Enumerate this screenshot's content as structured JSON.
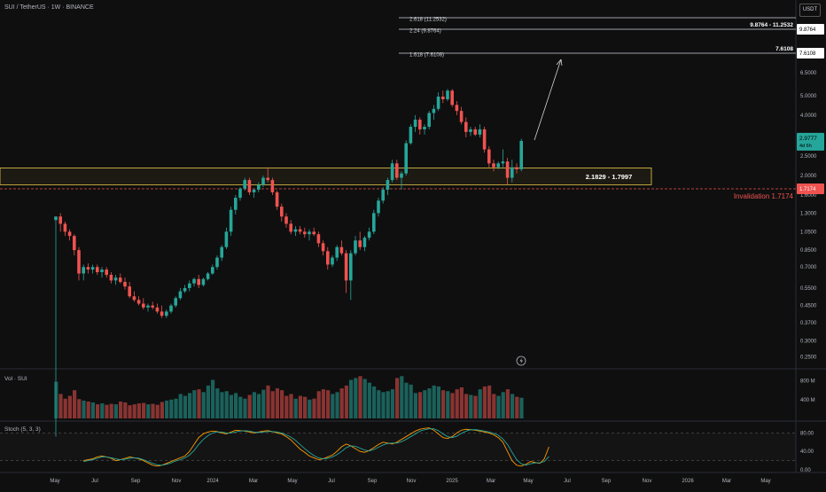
{
  "header": {
    "symbol": "SUI / TetherUS · 1W · BINANCE",
    "currency": "USDT"
  },
  "colors": {
    "up": "#26a69a",
    "down": "#ef5350",
    "support_box": "#e6c84a",
    "invalidation": "#ef5350",
    "background": "#0f0f0f",
    "stoch_k": "#ff9800",
    "stoch_d": "#26a69a"
  },
  "icons": {
    "replay": "lightning-bolt-icon"
  },
  "chart_data": [
    {
      "type": "candlestick",
      "scale": "log",
      "y_ticks": [
        0.25,
        0.3,
        0.37,
        0.45,
        0.55,
        0.7,
        0.85,
        1.05,
        1.3,
        1.6,
        2.0,
        2.5,
        3.0,
        4.0,
        5.0,
        6.5,
        8.0
      ],
      "y_tick_labels": [
        "0.2500",
        "0.3000",
        "0.3700",
        "0.4500",
        "0.5500",
        "0.7000",
        "0.8500",
        "1.0500",
        "1.3000",
        "1.6000",
        "2.0000",
        "2.5000",
        "3.0000",
        "4.0000",
        "5.0000",
        "6.5000",
        "8.0000"
      ],
      "x_labels": [
        "May",
        "Jul",
        "Sep",
        "Nov",
        "2024",
        "Mar",
        "May",
        "Jul",
        "Sep",
        "Nov",
        "2025",
        "Mar",
        "May",
        "Jul",
        "Sep",
        "Nov",
        "2026",
        "Mar",
        "May"
      ],
      "current_price": "2.9777",
      "countdown": "4d 6h",
      "fib_levels": [
        {
          "label": "2.618 (11.2532)",
          "value": 11.2532
        },
        {
          "label": "2.24 (9.8764)",
          "value": 9.8764
        },
        {
          "label": "1.618 (7.6108)",
          "value": 7.6108
        }
      ],
      "fib_range_label": "9.8764 - 11.2532",
      "target_label": "7.6108",
      "target_axis_label": "7.6108",
      "range_axis_label": "9.8764",
      "support_zone": {
        "label": "2.1829 - 1.7997",
        "top": 2.1829,
        "bottom": 1.7997
      },
      "invalidation": {
        "label": "Invalidation 1.7174",
        "value": 1.7174,
        "axis_label": "1.7174"
      },
      "candles": [
        [
          1.2,
          1.25,
          0.1,
          1.25
        ],
        [
          1.25,
          1.3,
          1.05,
          1.15
        ],
        [
          1.15,
          1.18,
          1.0,
          1.05
        ],
        [
          1.05,
          1.08,
          0.95,
          1.0
        ],
        [
          1.0,
          1.02,
          0.8,
          0.85
        ],
        [
          0.85,
          0.88,
          0.6,
          0.65
        ],
        [
          0.65,
          0.72,
          0.6,
          0.7
        ],
        [
          0.7,
          0.73,
          0.65,
          0.68
        ],
        [
          0.68,
          0.72,
          0.65,
          0.7
        ],
        [
          0.7,
          0.72,
          0.64,
          0.66
        ],
        [
          0.66,
          0.7,
          0.62,
          0.68
        ],
        [
          0.68,
          0.7,
          0.62,
          0.64
        ],
        [
          0.64,
          0.66,
          0.58,
          0.6
        ],
        [
          0.6,
          0.64,
          0.57,
          0.62
        ],
        [
          0.62,
          0.65,
          0.58,
          0.59
        ],
        [
          0.59,
          0.62,
          0.54,
          0.56
        ],
        [
          0.56,
          0.59,
          0.49,
          0.5
        ],
        [
          0.5,
          0.53,
          0.47,
          0.48
        ],
        [
          0.48,
          0.5,
          0.45,
          0.46
        ],
        [
          0.46,
          0.49,
          0.43,
          0.44
        ],
        [
          0.44,
          0.46,
          0.42,
          0.45
        ],
        [
          0.45,
          0.47,
          0.43,
          0.44
        ],
        [
          0.44,
          0.46,
          0.41,
          0.42
        ],
        [
          0.42,
          0.45,
          0.39,
          0.4
        ],
        [
          0.4,
          0.43,
          0.39,
          0.42
        ],
        [
          0.42,
          0.46,
          0.41,
          0.45
        ],
        [
          0.45,
          0.5,
          0.44,
          0.49
        ],
        [
          0.49,
          0.55,
          0.48,
          0.53
        ],
        [
          0.53,
          0.57,
          0.52,
          0.55
        ],
        [
          0.55,
          0.6,
          0.53,
          0.58
        ],
        [
          0.58,
          0.62,
          0.56,
          0.61
        ],
        [
          0.61,
          0.64,
          0.55,
          0.57
        ],
        [
          0.57,
          0.62,
          0.56,
          0.61
        ],
        [
          0.61,
          0.66,
          0.6,
          0.65
        ],
        [
          0.65,
          0.72,
          0.64,
          0.7
        ],
        [
          0.7,
          0.8,
          0.68,
          0.78
        ],
        [
          0.78,
          0.9,
          0.75,
          0.88
        ],
        [
          0.88,
          1.1,
          0.86,
          1.05
        ],
        [
          1.05,
          1.4,
          1.0,
          1.35
        ],
        [
          1.35,
          1.6,
          1.28,
          1.55
        ],
        [
          1.55,
          1.75,
          1.5,
          1.72
        ],
        [
          1.72,
          1.95,
          1.68,
          1.9
        ],
        [
          1.9,
          1.95,
          1.6,
          1.65
        ],
        [
          1.65,
          1.72,
          1.55,
          1.7
        ],
        [
          1.7,
          1.85,
          1.65,
          1.8
        ],
        [
          1.8,
          2.0,
          1.75,
          1.95
        ],
        [
          1.95,
          2.2,
          1.85,
          1.9
        ],
        [
          1.9,
          1.95,
          1.6,
          1.65
        ],
        [
          1.65,
          1.68,
          1.35,
          1.4
        ],
        [
          1.4,
          1.45,
          1.18,
          1.25
        ],
        [
          1.25,
          1.3,
          1.1,
          1.15
        ],
        [
          1.15,
          1.2,
          1.02,
          1.05
        ],
        [
          1.05,
          1.12,
          1.0,
          1.08
        ],
        [
          1.08,
          1.12,
          1.02,
          1.05
        ],
        [
          1.05,
          1.1,
          0.98,
          1.02
        ],
        [
          1.02,
          1.08,
          0.95,
          1.05
        ],
        [
          1.05,
          1.1,
          1.0,
          1.02
        ],
        [
          1.02,
          1.05,
          0.88,
          0.92
        ],
        [
          0.92,
          0.95,
          0.8,
          0.84
        ],
        [
          0.84,
          0.88,
          0.68,
          0.72
        ],
        [
          0.72,
          0.8,
          0.7,
          0.78
        ],
        [
          0.78,
          0.9,
          0.75,
          0.88
        ],
        [
          0.88,
          0.95,
          0.8,
          0.82
        ],
        [
          0.82,
          0.85,
          0.52,
          0.6
        ],
        [
          0.6,
          0.85,
          0.48,
          0.82
        ],
        [
          0.82,
          1.0,
          0.8,
          0.95
        ],
        [
          0.95,
          1.05,
          0.85,
          0.88
        ],
        [
          0.88,
          1.0,
          0.84,
          0.98
        ],
        [
          0.98,
          1.1,
          0.95,
          1.05
        ],
        [
          1.05,
          1.35,
          1.02,
          1.3
        ],
        [
          1.3,
          1.55,
          1.25,
          1.5
        ],
        [
          1.5,
          1.75,
          1.45,
          1.7
        ],
        [
          1.7,
          1.95,
          1.6,
          1.9
        ],
        [
          1.9,
          2.4,
          1.85,
          2.3
        ],
        [
          2.3,
          2.4,
          1.9,
          1.95
        ],
        [
          1.95,
          2.1,
          1.7,
          2.05
        ],
        [
          2.05,
          3.0,
          2.0,
          2.9
        ],
        [
          2.9,
          3.6,
          2.85,
          3.5
        ],
        [
          3.5,
          4.0,
          3.3,
          3.8
        ],
        [
          3.8,
          3.9,
          3.2,
          3.4
        ],
        [
          3.4,
          3.6,
          3.2,
          3.5
        ],
        [
          3.5,
          4.2,
          3.4,
          4.1
        ],
        [
          4.1,
          4.5,
          3.8,
          4.3
        ],
        [
          4.3,
          5.2,
          4.2,
          4.95
        ],
        [
          4.95,
          5.3,
          4.6,
          4.8
        ],
        [
          4.8,
          5.4,
          4.7,
          5.3
        ],
        [
          5.3,
          5.4,
          4.4,
          4.5
        ],
        [
          4.5,
          4.7,
          4.0,
          4.2
        ],
        [
          4.2,
          4.4,
          3.6,
          3.7
        ],
        [
          3.7,
          3.9,
          3.1,
          3.3
        ],
        [
          3.3,
          3.5,
          3.15,
          3.4
        ],
        [
          3.4,
          3.5,
          3.15,
          3.2
        ],
        [
          3.2,
          3.6,
          3.1,
          3.4
        ],
        [
          3.4,
          3.5,
          2.6,
          2.7
        ],
        [
          2.7,
          2.8,
          2.2,
          2.3
        ],
        [
          2.3,
          2.4,
          2.1,
          2.2
        ],
        [
          2.2,
          2.35,
          2.15,
          2.3
        ],
        [
          2.3,
          2.7,
          2.2,
          2.35
        ],
        [
          2.35,
          2.45,
          1.8,
          1.95
        ],
        [
          1.95,
          2.4,
          1.85,
          2.2
        ],
        [
          2.2,
          2.3,
          2.05,
          2.15
        ],
        [
          2.15,
          3.05,
          2.1,
          2.98
        ]
      ]
    },
    {
      "type": "bar",
      "label": "Vol · SUI",
      "y_tick_labels": [
        "800 M",
        "400 M"
      ],
      "y_ticks": [
        800,
        400
      ],
      "unit": "M",
      "values": [
        780,
        520,
        420,
        480,
        600,
        410,
        380,
        360,
        340,
        300,
        320,
        290,
        310,
        300,
        360,
        340,
        280,
        300,
        320,
        330,
        300,
        310,
        290,
        350,
        380,
        400,
        420,
        520,
        480,
        540,
        600,
        620,
        560,
        700,
        820,
        640,
        560,
        580,
        500,
        540,
        460,
        420,
        500,
        560,
        520,
        610,
        700,
        580,
        640,
        600,
        480,
        520,
        420,
        480,
        460,
        400,
        420,
        580,
        620,
        600,
        520,
        560,
        640,
        700,
        820,
        860,
        900,
        840,
        760,
        680,
        600,
        560,
        580,
        620,
        860,
        900,
        760,
        720,
        540,
        560,
        600,
        640,
        700,
        680,
        600,
        580,
        540,
        620,
        660,
        520,
        500,
        480,
        620,
        680,
        700,
        520,
        480,
        560,
        620,
        520,
        460,
        440
      ]
    },
    {
      "type": "line",
      "label": "Stoch (5, 3, 3)",
      "y_tick_labels": [
        "80.00",
        "40.00",
        "0.00"
      ],
      "y_ticks": [
        80,
        40,
        0
      ],
      "bands": [
        80,
        20
      ],
      "series": [
        {
          "values": [
            20,
            22,
            24,
            28,
            30,
            28,
            25,
            20,
            22,
            25,
            28,
            26,
            24,
            20,
            15,
            10,
            8,
            10,
            14,
            18,
            22,
            26,
            30,
            40,
            55,
            70,
            78,
            82,
            84,
            83,
            80,
            78,
            82,
            86,
            85,
            84,
            82,
            80,
            82,
            84,
            85,
            83,
            80,
            78,
            72,
            65,
            55,
            45,
            38,
            30,
            26,
            22,
            24,
            28,
            32,
            40,
            50,
            56,
            52,
            46,
            40,
            38,
            42,
            48,
            55,
            60,
            58,
            56,
            60,
            66,
            72,
            78,
            84,
            88,
            90,
            91,
            86,
            78,
            70,
            68,
            72,
            80,
            86,
            88,
            87,
            86,
            84,
            82,
            80,
            76,
            70,
            60,
            40,
            20,
            10,
            8,
            12,
            18,
            16,
            14,
            24,
            50
          ]
        },
        {
          "values": [
            18,
            20,
            22,
            25,
            28,
            28,
            26,
            24,
            22,
            23,
            25,
            26,
            25,
            22,
            18,
            14,
            11,
            10,
            12,
            15,
            19,
            22,
            26,
            32,
            42,
            55,
            66,
            74,
            80,
            82,
            82,
            80,
            80,
            82,
            84,
            85,
            84,
            82,
            81,
            82,
            83,
            83,
            82,
            80,
            76,
            71,
            64,
            55,
            46,
            38,
            31,
            26,
            24,
            25,
            28,
            33,
            40,
            48,
            52,
            51,
            47,
            43,
            41,
            44,
            49,
            54,
            57,
            58,
            58,
            61,
            66,
            72,
            78,
            84,
            87,
            89,
            89,
            85,
            78,
            72,
            70,
            73,
            79,
            84,
            87,
            87,
            86,
            84,
            82,
            79,
            75,
            67,
            55,
            38,
            22,
            13,
            10,
            13,
            15,
            15,
            18,
            29
          ]
        }
      ]
    }
  ]
}
